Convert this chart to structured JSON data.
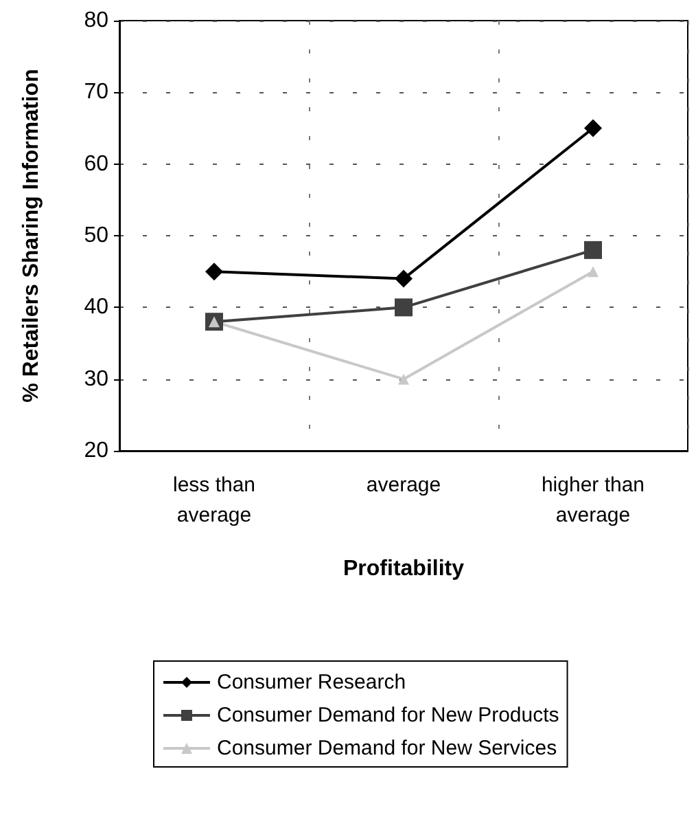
{
  "chart_data": {
    "type": "line",
    "xlabel": "Profitability",
    "ylabel": "% Retailers Sharing Information",
    "categories": [
      "less than\naverage",
      "average",
      "higher than\naverage"
    ],
    "series": [
      {
        "name": "Consumer Research",
        "color": "#000000",
        "marker": "diamond",
        "values": [
          45,
          44,
          65
        ]
      },
      {
        "name": "Consumer Demand for New Products",
        "color": "#404040",
        "marker": "square",
        "values": [
          38,
          40,
          48
        ]
      },
      {
        "name": "Consumer Demand for New Services",
        "color": "#c8c8c8",
        "marker": "triangle",
        "values": [
          38,
          30,
          45
        ]
      }
    ],
    "ylim": [
      20,
      80
    ],
    "yticks": [
      20,
      30,
      40,
      50,
      60,
      70,
      80
    ],
    "grid": true,
    "legend": "bottom"
  }
}
